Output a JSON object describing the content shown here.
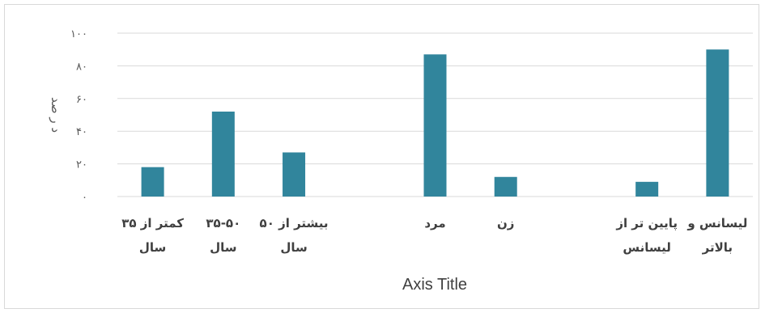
{
  "chart_data": {
    "type": "bar",
    "categories": [
      [
        "کمتر از ۳۵",
        "سال"
      ],
      [
        "۳۵-۵۰",
        "سال"
      ],
      [
        "بیشتر از ۵۰",
        "سال"
      ],
      [
        ""
      ],
      [
        "مرد"
      ],
      [
        "زن"
      ],
      [
        ""
      ],
      [
        "پایین تر از",
        "لیسانس"
      ],
      [
        "لیسانس و",
        "بالاتر"
      ]
    ],
    "values": [
      18,
      52,
      27,
      null,
      87,
      12,
      null,
      9,
      90
    ],
    "ylim": [
      0,
      100
    ],
    "yticks": [
      0,
      20,
      40,
      60,
      80,
      100
    ],
    "ytick_labels": [
      "۰",
      "۲۰",
      "۴۰",
      "۶۰",
      "۸۰",
      "۱۰۰"
    ],
    "ylabel": "د ر صد",
    "xlabel": "Axis Title",
    "grid": true,
    "bar_color": "#31859C",
    "grid_color": "#d9d9d9"
  }
}
